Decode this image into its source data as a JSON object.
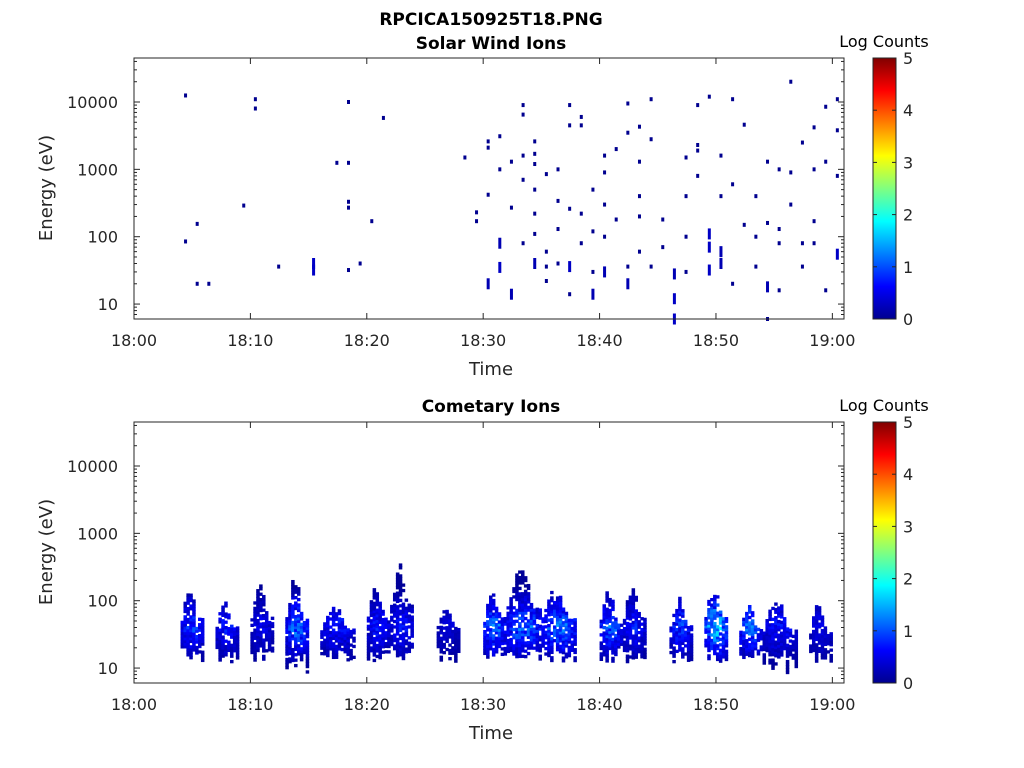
{
  "figure_title": "RPCICA150925T18.PNG",
  "colors": {
    "colormap": [
      "#00008f",
      "#0000ff",
      "#0080ff",
      "#00ffff",
      "#80ff80",
      "#ffff00",
      "#ff8000",
      "#ff0000",
      "#800000"
    ],
    "axis": "#262626"
  },
  "chart_data": [
    {
      "type": "heatmap",
      "title": "Solar Wind Ions",
      "xlabel": "Time",
      "ylabel": "Energy (eV)",
      "xlim": [
        "18:00",
        "19:01"
      ],
      "ylim": [
        6,
        45000
      ],
      "yscale": "log",
      "grid": false,
      "xticks": [
        "18:00",
        "18:10",
        "18:20",
        "18:30",
        "18:40",
        "18:50",
        "19:00"
      ],
      "yticks": [
        "10",
        "100",
        "1000",
        "10000"
      ],
      "colorbar": {
        "label": "Log Counts",
        "range": [
          0,
          5
        ],
        "ticks": [
          "0",
          "1",
          "2",
          "3",
          "4",
          "5"
        ]
      },
      "points": [
        [
          "18:04",
          12500,
          0
        ],
        [
          "18:04",
          85,
          0
        ],
        [
          "18:05",
          20,
          0
        ],
        [
          "18:05",
          155,
          0
        ],
        [
          "18:06",
          20,
          0
        ],
        [
          "18:09",
          290,
          0
        ],
        [
          "18:10",
          11000,
          0
        ],
        [
          "18:10",
          8000,
          0
        ],
        [
          "18:12",
          36,
          0
        ],
        [
          "18:15",
          32,
          0.3
        ],
        [
          "18:15",
          40,
          0.3
        ],
        [
          "18:17",
          1250,
          0
        ],
        [
          "18:18",
          1250,
          0
        ],
        [
          "18:18",
          32,
          0
        ],
        [
          "18:18",
          330,
          0
        ],
        [
          "18:18",
          270,
          0
        ],
        [
          "18:18",
          10000,
          0
        ],
        [
          "18:19",
          40,
          0
        ],
        [
          "18:20",
          170,
          0
        ],
        [
          "18:21",
          5800,
          0
        ],
        [
          "18:28",
          1500,
          0
        ],
        [
          "18:29",
          230,
          0
        ],
        [
          "18:29",
          170,
          0
        ],
        [
          "18:30",
          420,
          0
        ],
        [
          "18:30",
          2600,
          0
        ],
        [
          "18:30",
          2100,
          0
        ],
        [
          "18:30",
          20,
          0.2
        ],
        [
          "18:31",
          1000,
          0
        ],
        [
          "18:31",
          3100,
          0
        ],
        [
          "18:31",
          80,
          0.2
        ],
        [
          "18:31",
          35,
          0.3
        ],
        [
          "18:32",
          14,
          0.2
        ],
        [
          "18:32",
          270,
          0
        ],
        [
          "18:32",
          1300,
          0
        ],
        [
          "18:33",
          9000,
          0
        ],
        [
          "18:33",
          6500,
          0
        ],
        [
          "18:33",
          1600,
          0
        ],
        [
          "18:33",
          700,
          0
        ],
        [
          "18:33",
          80,
          0
        ],
        [
          "18:34",
          2600,
          0
        ],
        [
          "18:34",
          1700,
          0
        ],
        [
          "18:34",
          1200,
          0
        ],
        [
          "18:34",
          500,
          0
        ],
        [
          "18:34",
          220,
          0
        ],
        [
          "18:34",
          110,
          0
        ],
        [
          "18:34",
          40,
          0.2
        ],
        [
          "18:35",
          850,
          0
        ],
        [
          "18:35",
          60,
          0
        ],
        [
          "18:35",
          22,
          0
        ],
        [
          "18:35",
          36,
          0
        ],
        [
          "18:36",
          1000,
          0
        ],
        [
          "18:36",
          340,
          0
        ],
        [
          "18:36",
          130,
          0
        ],
        [
          "18:36",
          40,
          0
        ],
        [
          "18:37",
          9000,
          0
        ],
        [
          "18:37",
          4500,
          0
        ],
        [
          "18:37",
          260,
          0
        ],
        [
          "18:37",
          36,
          0.3
        ],
        [
          "18:37",
          14,
          0
        ],
        [
          "18:38",
          6000,
          0
        ],
        [
          "18:38",
          4500,
          0
        ],
        [
          "18:38",
          220,
          0
        ],
        [
          "18:38",
          80,
          0
        ],
        [
          "18:39",
          500,
          0
        ],
        [
          "18:39",
          120,
          0
        ],
        [
          "18:39",
          30,
          0
        ],
        [
          "18:39",
          14,
          0.2
        ],
        [
          "18:40",
          1600,
          0
        ],
        [
          "18:40",
          900,
          0
        ],
        [
          "18:40",
          300,
          0
        ],
        [
          "18:40",
          100,
          0
        ],
        [
          "18:40",
          30,
          0.2
        ],
        [
          "18:41",
          180,
          0
        ],
        [
          "18:41",
          2000,
          0
        ],
        [
          "18:42",
          3500,
          0
        ],
        [
          "18:42",
          9500,
          0
        ],
        [
          "18:42",
          20,
          0.2
        ],
        [
          "18:42",
          36,
          0
        ],
        [
          "18:43",
          4300,
          0
        ],
        [
          "18:43",
          1300,
          0
        ],
        [
          "18:43",
          400,
          0
        ],
        [
          "18:43",
          200,
          0
        ],
        [
          "18:43",
          60,
          0
        ],
        [
          "18:44",
          2800,
          0
        ],
        [
          "18:44",
          36,
          0
        ],
        [
          "18:44",
          11000,
          0
        ],
        [
          "18:45",
          180,
          0
        ],
        [
          "18:45",
          70,
          0
        ],
        [
          "18:46",
          28,
          0.2
        ],
        [
          "18:46",
          12,
          0.3
        ],
        [
          "18:46",
          6,
          0.3
        ],
        [
          "18:47",
          1500,
          0
        ],
        [
          "18:47",
          400,
          0
        ],
        [
          "18:47",
          100,
          0
        ],
        [
          "18:47",
          30,
          0
        ],
        [
          "18:48",
          9000,
          0
        ],
        [
          "18:48",
          1900,
          0
        ],
        [
          "18:48",
          800,
          0
        ],
        [
          "18:48",
          2300,
          0
        ],
        [
          "18:49",
          12000,
          0
        ],
        [
          "18:49",
          70,
          0.3
        ],
        [
          "18:49",
          110,
          0.3
        ],
        [
          "18:49",
          32,
          0.3
        ],
        [
          "18:50",
          400,
          0
        ],
        [
          "18:50",
          1600,
          0
        ],
        [
          "18:50",
          40,
          0.2
        ],
        [
          "18:50",
          60,
          0.2
        ],
        [
          "18:51",
          11000,
          0
        ],
        [
          "18:51",
          600,
          0
        ],
        [
          "18:51",
          20,
          0
        ],
        [
          "18:52",
          4600,
          0
        ],
        [
          "18:52",
          150,
          0
        ],
        [
          "18:53",
          400,
          0
        ],
        [
          "18:53",
          100,
          0
        ],
        [
          "18:53",
          36,
          0
        ],
        [
          "18:54",
          18,
          0.2
        ],
        [
          "18:54",
          1300,
          0
        ],
        [
          "18:54",
          160,
          0
        ],
        [
          "18:54",
          6,
          0
        ],
        [
          "18:55",
          1000,
          0
        ],
        [
          "18:55",
          130,
          0
        ],
        [
          "18:55",
          80,
          0
        ],
        [
          "18:55",
          16,
          0
        ],
        [
          "18:56",
          20000,
          0
        ],
        [
          "18:56",
          900,
          0
        ],
        [
          "18:56",
          300,
          0
        ],
        [
          "18:57",
          2500,
          0
        ],
        [
          "18:57",
          36,
          0
        ],
        [
          "18:57",
          80,
          0
        ],
        [
          "18:58",
          4200,
          0
        ],
        [
          "18:58",
          1000,
          0
        ],
        [
          "18:58",
          170,
          0
        ],
        [
          "18:58",
          80,
          0
        ],
        [
          "18:59",
          16,
          0
        ],
        [
          "18:59",
          8500,
          0
        ],
        [
          "18:59",
          1300,
          0
        ],
        [
          "19:00",
          55,
          0.3
        ],
        [
          "19:00",
          3800,
          0
        ],
        [
          "19:00",
          11000,
          0
        ],
        [
          "19:00",
          800,
          0
        ]
      ]
    },
    {
      "type": "heatmap",
      "title": "Cometary Ions",
      "xlabel": "Time",
      "ylabel": "Energy (eV)",
      "xlim": [
        "18:00",
        "19:01"
      ],
      "ylim": [
        6,
        45000
      ],
      "yscale": "log",
      "grid": false,
      "xticks": [
        "18:00",
        "18:10",
        "18:20",
        "18:30",
        "18:40",
        "18:50",
        "19:00"
      ],
      "yticks": [
        "10",
        "100",
        "1000",
        "10000"
      ],
      "colorbar": {
        "label": "Log Counts",
        "range": [
          0,
          5
        ],
        "ticks": [
          "0",
          "1",
          "2",
          "3",
          "4",
          "5"
        ]
      },
      "bursts": [
        {
          "start": "18:04",
          "end": "18:06",
          "emin": 12,
          "emax": 175,
          "peak": 1.0
        },
        {
          "start": "18:07",
          "end": "18:09",
          "emin": 12,
          "emax": 100,
          "peak": 0.8
        },
        {
          "start": "18:10",
          "end": "18:12",
          "emin": 12,
          "emax": 180,
          "peak": 0.6
        },
        {
          "start": "18:13",
          "end": "18:15",
          "emin": 8,
          "emax": 250,
          "peak": 1.3
        },
        {
          "start": "18:16",
          "end": "18:19",
          "emin": 12,
          "emax": 90,
          "peak": 0.8
        },
        {
          "start": "18:20",
          "end": "18:22",
          "emin": 12,
          "emax": 180,
          "peak": 0.8
        },
        {
          "start": "18:22",
          "end": "18:24",
          "emin": 12,
          "emax": 420,
          "peak": 0.8
        },
        {
          "start": "18:26",
          "end": "18:28",
          "emin": 12,
          "emax": 100,
          "peak": 0.5
        },
        {
          "start": "18:30",
          "end": "18:32",
          "emin": 12,
          "emax": 175,
          "peak": 1.3
        },
        {
          "start": "18:32",
          "end": "18:35",
          "emin": 12,
          "emax": 350,
          "peak": 1.3
        },
        {
          "start": "18:35",
          "end": "18:38",
          "emin": 12,
          "emax": 175,
          "peak": 1.3
        },
        {
          "start": "18:40",
          "end": "18:42",
          "emin": 12,
          "emax": 150,
          "peak": 1.2
        },
        {
          "start": "18:42",
          "end": "18:44",
          "emin": 12,
          "emax": 175,
          "peak": 0.8
        },
        {
          "start": "18:46",
          "end": "18:48",
          "emin": 12,
          "emax": 110,
          "peak": 1.0
        },
        {
          "start": "18:49",
          "end": "18:51",
          "emin": 12,
          "emax": 175,
          "peak": 1.8
        },
        {
          "start": "18:52",
          "end": "18:54",
          "emin": 12,
          "emax": 90,
          "peak": 1.3
        },
        {
          "start": "18:54",
          "end": "18:57",
          "emin": 8,
          "emax": 120,
          "peak": 0.8
        },
        {
          "start": "18:58",
          "end": "19:00",
          "emin": 8,
          "emax": 100,
          "peak": 0.6
        }
      ]
    }
  ]
}
